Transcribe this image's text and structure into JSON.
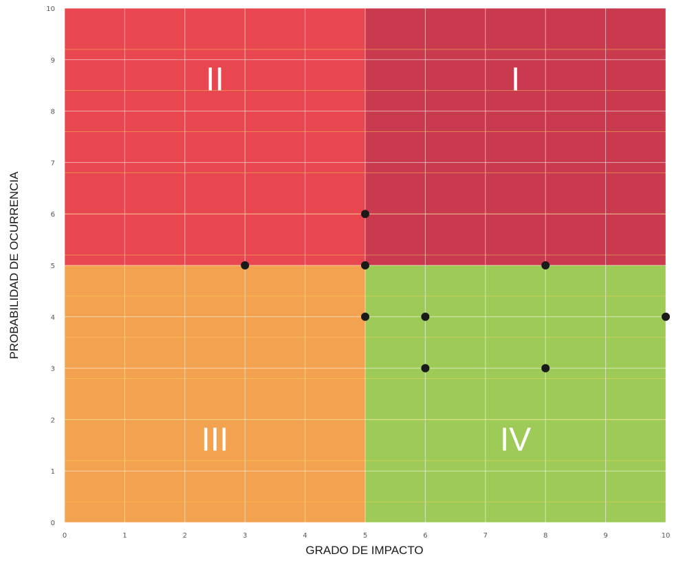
{
  "chart_data": {
    "type": "scatter",
    "xlabel": "GRADO DE IMPACTO",
    "ylabel": "PROBABILIDAD DE OCURRENCIA",
    "xlim": [
      0,
      10
    ],
    "ylim": [
      0,
      10
    ],
    "x_ticks": [
      "0",
      "1",
      "2",
      "3",
      "4",
      "5",
      "6",
      "7",
      "8",
      "9",
      "10"
    ],
    "y_ticks": [
      "0",
      "1",
      "2",
      "3",
      "4",
      "5",
      "6",
      "7",
      "8",
      "9",
      "10"
    ],
    "grid": true,
    "quadrants": [
      {
        "label": "I",
        "x_range": [
          5,
          10
        ],
        "y_range": [
          5,
          10
        ],
        "color": "#c93a4e"
      },
      {
        "label": "II",
        "x_range": [
          0,
          5
        ],
        "y_range": [
          5,
          10
        ],
        "color": "#e8474f"
      },
      {
        "label": "III",
        "x_range": [
          0,
          5
        ],
        "y_range": [
          0,
          5
        ],
        "color": "#f3a24f"
      },
      {
        "label": "IV",
        "x_range": [
          5,
          10
        ],
        "y_range": [
          0,
          5
        ],
        "color": "#9ecb58"
      }
    ],
    "points": [
      {
        "x": 5,
        "y": 6
      },
      {
        "x": 3,
        "y": 5
      },
      {
        "x": 5,
        "y": 5
      },
      {
        "x": 8,
        "y": 5
      },
      {
        "x": 5,
        "y": 4
      },
      {
        "x": 6,
        "y": 4
      },
      {
        "x": 10,
        "y": 4
      },
      {
        "x": 6,
        "y": 3
      },
      {
        "x": 8,
        "y": 3
      }
    ],
    "point_color": "#1a1a1a"
  }
}
